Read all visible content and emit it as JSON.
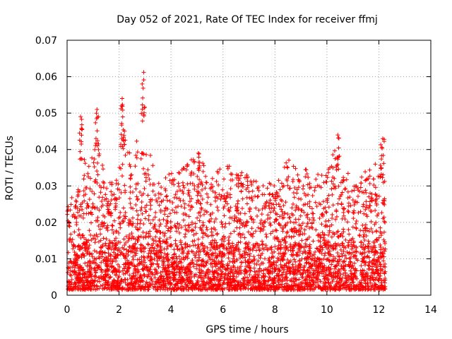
{
  "chart_data": {
    "type": "scatter",
    "title": "Day 052 of 2021, Rate Of TEC Index for receiver ffmj",
    "xlabel": "GPS time / hours",
    "ylabel": "ROTI / TECUs",
    "xlim": [
      0,
      14
    ],
    "ylim": [
      0,
      0.07
    ],
    "x_ticks": [
      0,
      2,
      4,
      6,
      8,
      10,
      12,
      14
    ],
    "x_tick_labels": [
      "0",
      "2",
      "4",
      "6",
      "8",
      "10",
      "12",
      "14"
    ],
    "y_ticks": [
      0,
      0.01,
      0.02,
      0.03,
      0.04,
      0.05,
      0.06,
      0.07
    ],
    "y_tick_labels": [
      "0",
      "0.01",
      "0.02",
      "0.03",
      "0.04",
      "0.05",
      "0.06",
      "0.07"
    ],
    "grid": true,
    "marker": "+",
    "color": "#ff0000",
    "x_data_range": [
      0,
      12.25
    ],
    "series": [
      {
        "name": "ROTI",
        "envelope": {
          "x": [
            0.0,
            0.25,
            0.5,
            0.55,
            0.75,
            1.0,
            1.1,
            1.5,
            2.0,
            2.1,
            2.5,
            2.95,
            3.0,
            3.5,
            4.0,
            4.5,
            5.0,
            5.5,
            6.0,
            6.5,
            7.0,
            7.5,
            8.0,
            8.5,
            9.0,
            9.5,
            10.0,
            10.4,
            10.5,
            11.0,
            11.5,
            12.0,
            12.1,
            12.25
          ],
          "y": [
            0.025,
            0.028,
            0.03,
            0.049,
            0.033,
            0.04,
            0.051,
            0.03,
            0.033,
            0.054,
            0.035,
            0.061,
            0.045,
            0.032,
            0.034,
            0.035,
            0.039,
            0.033,
            0.036,
            0.036,
            0.034,
            0.032,
            0.03,
            0.038,
            0.035,
            0.034,
            0.033,
            0.044,
            0.036,
            0.032,
            0.034,
            0.038,
            0.043,
            0.03
          ]
        },
        "peaks": [
          {
            "x": 0.52,
            "y": 0.049
          },
          {
            "x": 1.15,
            "y": 0.051
          },
          {
            "x": 2.12,
            "y": 0.054
          },
          {
            "x": 2.95,
            "y": 0.0612
          },
          {
            "x": 5.05,
            "y": 0.039
          },
          {
            "x": 10.42,
            "y": 0.044
          },
          {
            "x": 12.15,
            "y": 0.043
          }
        ]
      }
    ]
  }
}
